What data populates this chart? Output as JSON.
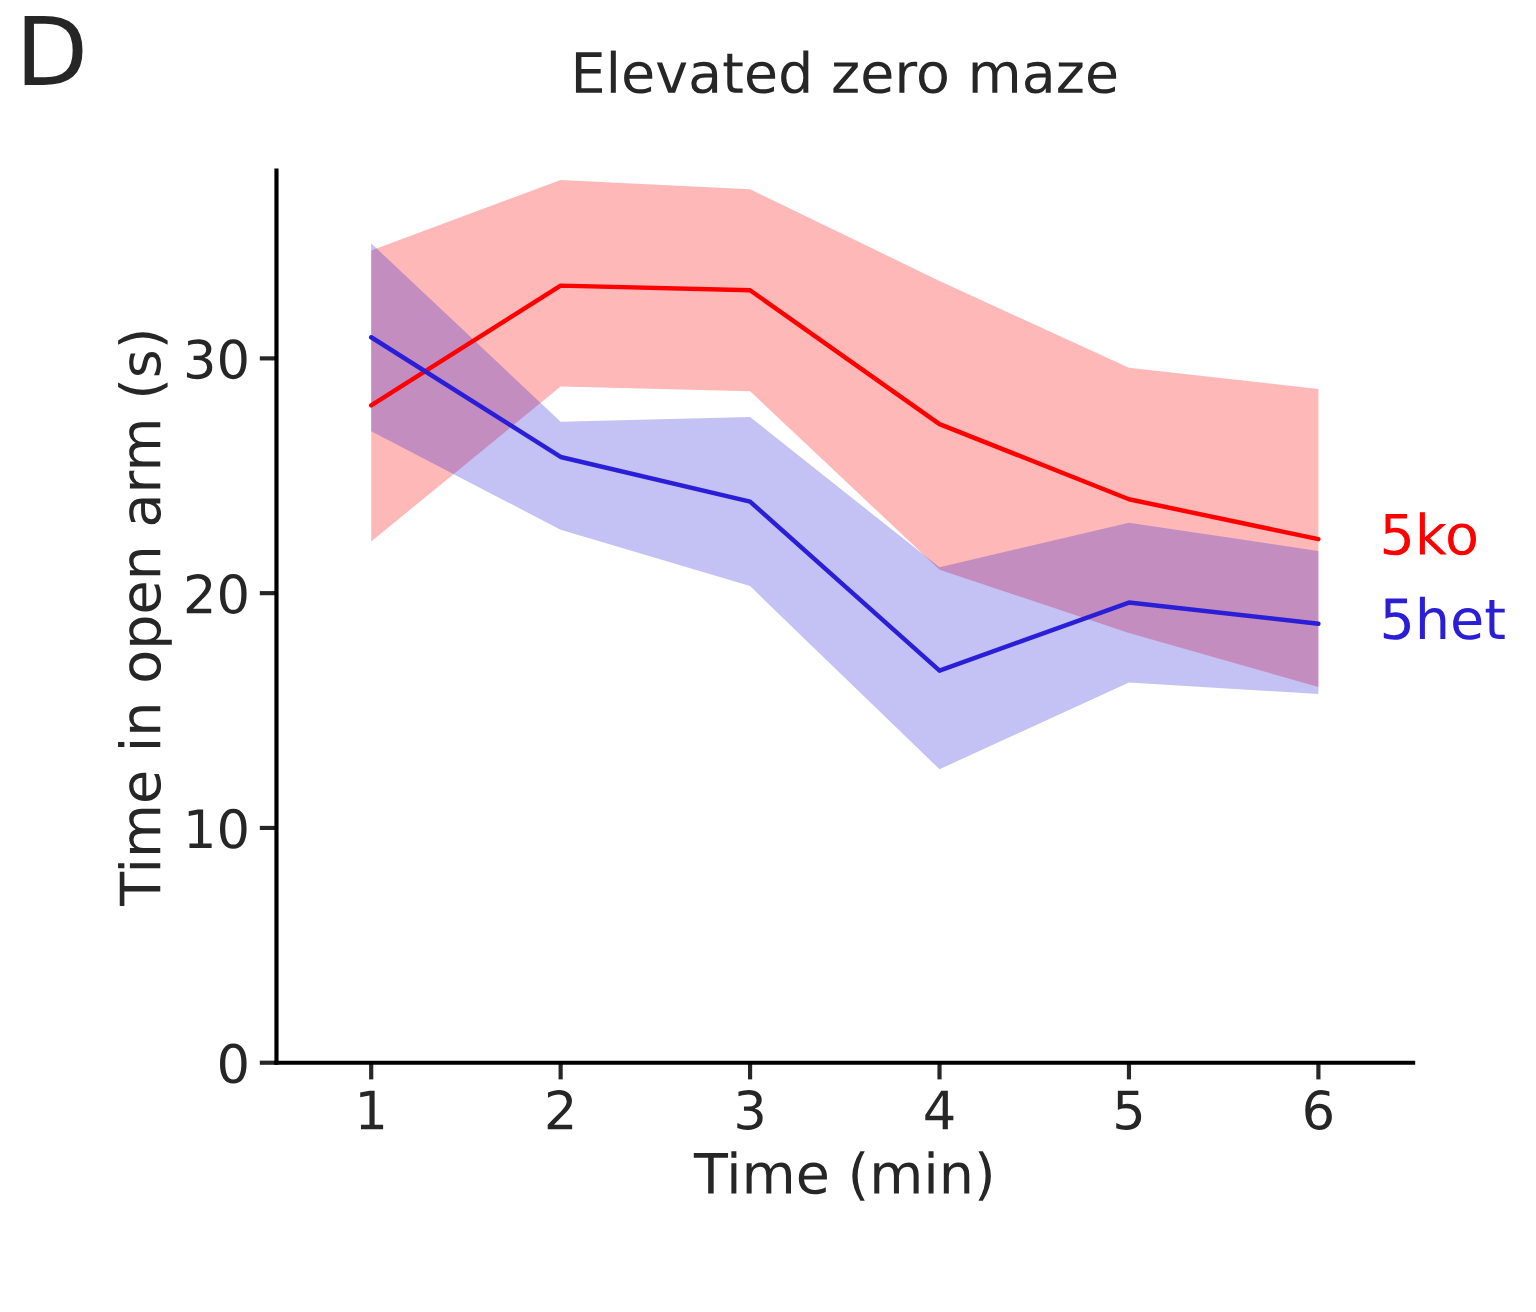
{
  "chart_data": {
    "type": "line",
    "title": "Elevated zero maze",
    "xlabel": "Time (min)",
    "ylabel": "Time in open arm (s)",
    "annotations": [
      "D"
    ],
    "x": [
      1,
      2,
      3,
      4,
      5,
      6
    ],
    "series": [
      {
        "name": "5ko",
        "color": "#ff0000",
        "values": [
          28.0,
          33.1,
          32.9,
          27.2,
          24.0,
          22.3
        ],
        "lower": [
          22.2,
          28.8,
          28.6,
          21.0,
          18.3,
          16.0
        ],
        "upper": [
          34.6,
          37.6,
          37.2,
          33.3,
          29.6,
          28.7
        ]
      },
      {
        "name": "5het",
        "color": "#2a1fd6",
        "values": [
          30.9,
          25.8,
          23.9,
          16.7,
          19.6,
          18.7
        ],
        "lower": [
          26.9,
          22.7,
          20.3,
          12.5,
          16.2,
          15.7
        ],
        "upper": [
          34.9,
          27.3,
          27.5,
          21.1,
          23.0,
          21.8
        ]
      }
    ],
    "xlim": [
      0.5,
      6.5
    ],
    "xticks": [
      1,
      2,
      3,
      4,
      5,
      6
    ],
    "ylim": [
      0,
      38
    ],
    "yticks": [
      0,
      10,
      20,
      30
    ],
    "grid": false,
    "legend": false,
    "marker": "none",
    "line_style": "solid"
  }
}
